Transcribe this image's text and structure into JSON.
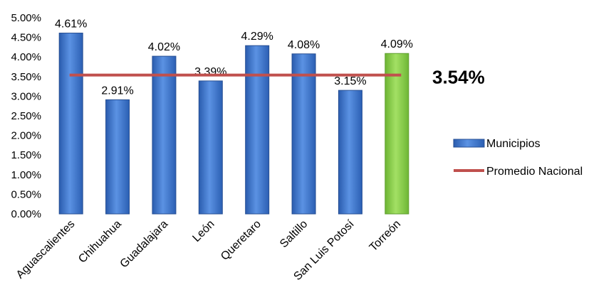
{
  "chart_data": {
    "type": "bar",
    "categories": [
      "Aguascalientes",
      "Chihuahua",
      "Guadalajara",
      "León",
      "Queretaro",
      "Saltillo",
      "San Luis Potosí",
      "Torreón"
    ],
    "values": [
      4.61,
      2.91,
      4.02,
      3.39,
      4.29,
      4.08,
      3.15,
      4.09
    ],
    "value_labels": [
      "4.61%",
      "2.91%",
      "4.02%",
      "3.39%",
      "4.29%",
      "4.08%",
      "3.15%",
      "4.09%"
    ],
    "highlight_category": "Torreón",
    "series": [
      {
        "name": "Municipios",
        "type": "bar",
        "color": "#4a7fd0"
      },
      {
        "name": "Promedio Nacional",
        "type": "line",
        "value": 3.54,
        "color": "#c0504d"
      }
    ],
    "average_label": "3.54%",
    "ylim": [
      0,
      5
    ],
    "y_ticks": [
      "0.00%",
      "0.50%",
      "1.00%",
      "1.50%",
      "2.00%",
      "2.50%",
      "3.00%",
      "3.50%",
      "4.00%",
      "4.50%",
      "5.00%"
    ],
    "grid": false,
    "legend_position": "right",
    "colors": {
      "bar": "#4a7fd0",
      "bar_highlight": "#8fd14f",
      "average_line": "#c0504d"
    }
  }
}
